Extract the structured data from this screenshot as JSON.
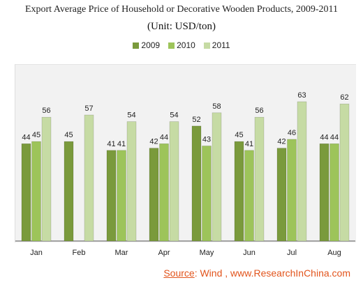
{
  "chart_data": {
    "type": "bar",
    "title": "Export Average Price of Household or Decorative Wooden Products, 2009-2011",
    "subtitle": "(Unit: USD/ton)",
    "categories": [
      "Jan",
      "Feb",
      "Mar",
      "Apr",
      "May",
      "Jun",
      "Jul",
      "Aug"
    ],
    "series": [
      {
        "name": "2009",
        "values": [
          44,
          45,
          41,
          42,
          52,
          45,
          42,
          44
        ],
        "color": "#7a9a3c"
      },
      {
        "name": "2010",
        "values": [
          45,
          null,
          41,
          44,
          43,
          41,
          46,
          44
        ],
        "color": "#9dc45a"
      },
      {
        "name": "2011",
        "values": [
          56,
          57,
          54,
          54,
          58,
          56,
          63,
          62
        ],
        "color": "#c6dba4"
      }
    ],
    "ylim": [
      0,
      80
    ],
    "grid": false,
    "legend_position": "top"
  },
  "source": {
    "label": "Source",
    "text": ": Wind ,  www.ResearchInChina.com"
  }
}
